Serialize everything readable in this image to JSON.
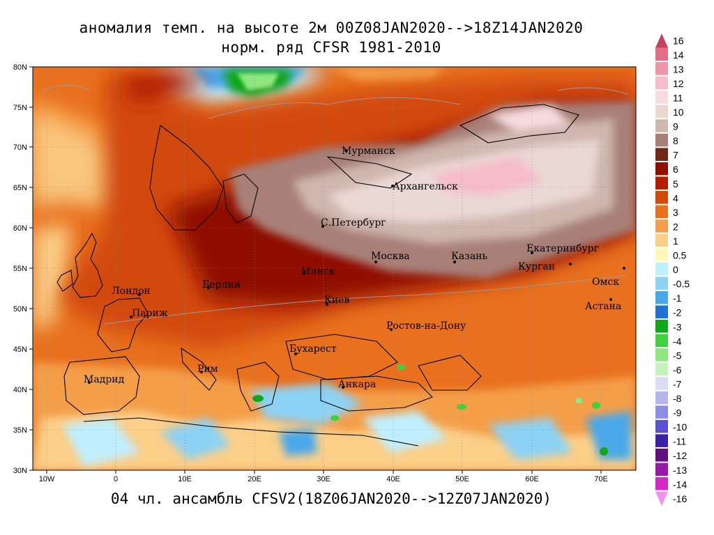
{
  "title": {
    "line1": "аномалия темп. на высоте 2м 00Z08JAN2020-->18Z14JAN2020",
    "line2": "норм. ряд CFSR 1981-2010"
  },
  "footer": "04 чл. ансамбль CFSV2(18Z06JAN2020-->12Z07JAN2020)",
  "axes": {
    "lon_ticks": [
      "10W",
      "0",
      "10E",
      "20E",
      "30E",
      "40E",
      "50E",
      "60E",
      "70E"
    ],
    "lat_ticks": [
      "80N",
      "75N",
      "70N",
      "65N",
      "60N",
      "55N",
      "50N",
      "45N",
      "40N",
      "35N",
      "30N"
    ]
  },
  "cities": [
    {
      "name": "Мурманск"
    },
    {
      "name": "Архангельск"
    },
    {
      "name": "С.Петербург"
    },
    {
      "name": "Москва"
    },
    {
      "name": "Казань"
    },
    {
      "name": "Екатеринбург"
    },
    {
      "name": "Курган"
    },
    {
      "name": "Омск"
    },
    {
      "name": "Астана"
    },
    {
      "name": "Минск"
    },
    {
      "name": "Берлин"
    },
    {
      "name": "Лондон"
    },
    {
      "name": "Париж"
    },
    {
      "name": "Киев"
    },
    {
      "name": "Ростов-на-Дону"
    },
    {
      "name": "Бухарест"
    },
    {
      "name": "Рим"
    },
    {
      "name": "Мадрид"
    },
    {
      "name": "Анкара"
    }
  ],
  "legend": {
    "labels": [
      "16",
      "14",
      "13",
      "12",
      "11",
      "10",
      "9",
      "8",
      "7",
      "6",
      "5",
      "4",
      "3",
      "2",
      "1",
      "0.5",
      "0",
      "-0.5",
      "-1",
      "-2",
      "-3",
      "-4",
      "-5",
      "-6",
      "-7",
      "-8",
      "-9",
      "-10",
      "-11",
      "-12",
      "-13",
      "-14",
      "-16"
    ],
    "colors": [
      "#c8415a",
      "#e46e88",
      "#ee96a8",
      "#f6bcc8",
      "#f6dcde",
      "#ead8d4",
      "#cfb6ae",
      "#a88078",
      "#6e2818",
      "#8e0e00",
      "#b31e00",
      "#d24a08",
      "#e8701e",
      "#f49e4a",
      "#fbcf88",
      "#fff8b8",
      "#bfefff",
      "#8cd2f4",
      "#48a8ea",
      "#1f74d2",
      "#10a818",
      "#3fd23f",
      "#8ee882",
      "#c6f2bc",
      "#dcdcf6",
      "#b6b6ee",
      "#8e8ee6",
      "#5a50d4",
      "#3a20a8",
      "#600e80",
      "#9a1aa8",
      "#d428c4",
      "#f490f0"
    ]
  }
}
